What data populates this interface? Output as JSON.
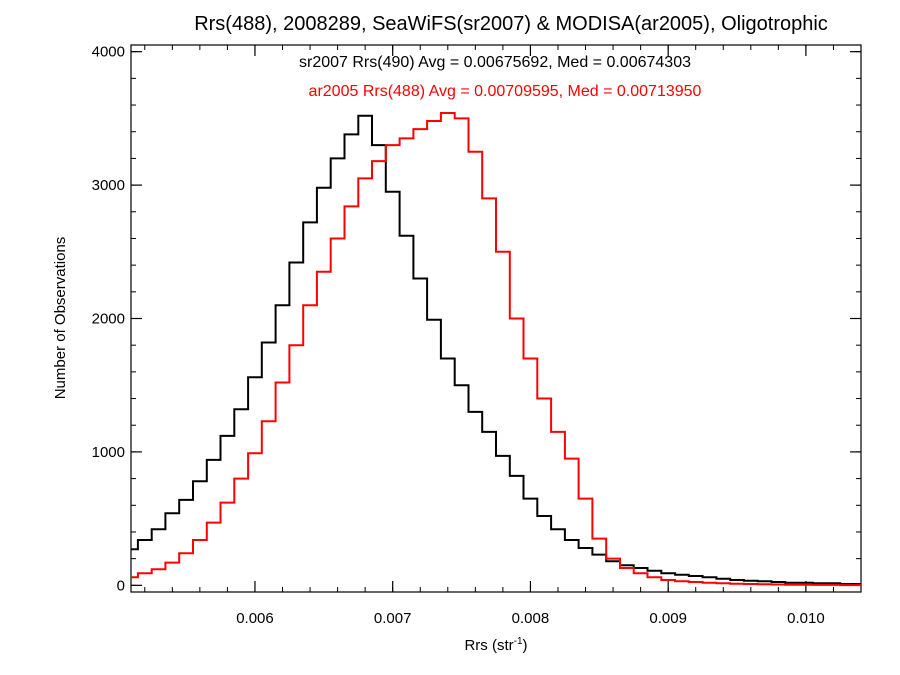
{
  "chart_data": {
    "type": "line",
    "title": "Rrs(488), 2008289, SeaWiFS(sr2007) & MODISA(ar2005), Oligotrophic",
    "xlabel": "Rrs (str",
    "xlabel_sup": "-1",
    "xlabel_close": ")",
    "ylabel": "Number of Observations",
    "xlim": [
      0.0051,
      0.0104
    ],
    "ylim": [
      -50,
      4050
    ],
    "xticks": [
      0.006,
      0.007,
      0.008,
      0.009,
      0.01
    ],
    "xtick_labels": [
      "0.006",
      "0.007",
      "0.008",
      "0.009",
      "0.010"
    ],
    "yticks": [
      0,
      1000,
      2000,
      3000,
      4000
    ],
    "ytick_labels": [
      "0",
      "1000",
      "2000",
      "3000",
      "4000"
    ],
    "grid": false,
    "annotations": [
      {
        "text": "sr2007 Rrs(490) Avg = 0.00675692, Med = 0.00674303",
        "color": "#000000"
      },
      {
        "text": "ar2005 Rrs(488) Avg = 0.00709595, Med = 0.00713950",
        "color": "#ff0000"
      }
    ],
    "series": [
      {
        "color": "#000000",
        "x": [
          0.0051,
          0.0052,
          0.0053,
          0.0054,
          0.0055,
          0.0056,
          0.0057,
          0.0058,
          0.0059,
          0.006,
          0.0061,
          0.0062,
          0.0063,
          0.0064,
          0.0065,
          0.0066,
          0.0067,
          0.0068,
          0.0069,
          0.007,
          0.0071,
          0.0072,
          0.0073,
          0.0074,
          0.0075,
          0.0076,
          0.0077,
          0.0078,
          0.0079,
          0.008,
          0.0081,
          0.0082,
          0.0083,
          0.0084,
          0.0085,
          0.0086,
          0.0087,
          0.0088,
          0.0089,
          0.009,
          0.0091,
          0.0092,
          0.0093,
          0.0094,
          0.0095,
          0.0096,
          0.0097,
          0.0098,
          0.0099,
          0.01,
          0.0101,
          0.0102,
          0.0103,
          0.0104
        ],
        "y": [
          270,
          340,
          420,
          540,
          640,
          780,
          940,
          1120,
          1320,
          1560,
          1820,
          2100,
          2420,
          2720,
          2980,
          3200,
          3380,
          3520,
          3300,
          2950,
          2620,
          2300,
          1990,
          1700,
          1500,
          1300,
          1150,
          970,
          820,
          650,
          520,
          420,
          340,
          280,
          230,
          180,
          150,
          130,
          110,
          90,
          80,
          70,
          60,
          50,
          40,
          35,
          30,
          25,
          20,
          20,
          15,
          15,
          10,
          10
        ]
      },
      {
        "color": "#ff0000",
        "x": [
          0.0051,
          0.0052,
          0.0053,
          0.0054,
          0.0055,
          0.0056,
          0.0057,
          0.0058,
          0.0059,
          0.006,
          0.0061,
          0.0062,
          0.0063,
          0.0064,
          0.0065,
          0.0066,
          0.0067,
          0.0068,
          0.0069,
          0.007,
          0.0071,
          0.0072,
          0.0073,
          0.0074,
          0.0075,
          0.0076,
          0.0077,
          0.0078,
          0.0079,
          0.008,
          0.0081,
          0.0082,
          0.0083,
          0.0084,
          0.0085,
          0.0086,
          0.0087,
          0.0088,
          0.0089,
          0.009,
          0.0091,
          0.0092,
          0.0093,
          0.0094,
          0.0095,
          0.0096,
          0.0097,
          0.0098,
          0.0099,
          0.01,
          0.0101,
          0.0102,
          0.0103,
          0.0104
        ],
        "y": [
          60,
          90,
          120,
          170,
          240,
          340,
          470,
          620,
          800,
          990,
          1230,
          1520,
          1800,
          2100,
          2350,
          2600,
          2840,
          3050,
          3180,
          3300,
          3350,
          3420,
          3480,
          3540,
          3500,
          3250,
          2900,
          2500,
          2000,
          1700,
          1400,
          1150,
          950,
          650,
          350,
          200,
          130,
          90,
          60,
          40,
          30,
          25,
          20,
          15,
          12,
          10,
          8,
          6,
          5,
          4,
          3,
          3,
          2,
          2
        ]
      }
    ]
  }
}
